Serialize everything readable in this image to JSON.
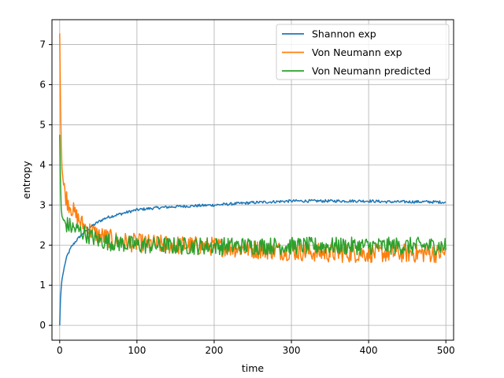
{
  "chart_data": {
    "type": "line",
    "title": "",
    "xlabel": "time",
    "ylabel": "entropy",
    "xlim": [
      -10,
      510
    ],
    "ylim": [
      -0.37,
      7.62
    ],
    "xticks": [
      0,
      100,
      200,
      300,
      400,
      500
    ],
    "yticks": [
      0,
      1,
      2,
      3,
      4,
      5,
      6,
      7
    ],
    "grid": true,
    "legend_position": "upper-right",
    "series": [
      {
        "name": "Shannon exp",
        "color": "#1f77b4",
        "x": [
          0,
          1,
          2,
          3,
          5,
          7,
          10,
          15,
          20,
          30,
          40,
          50,
          60,
          75,
          100,
          125,
          150,
          175,
          200,
          225,
          250,
          275,
          300,
          325,
          350,
          375,
          400,
          425,
          450,
          475,
          500
        ],
        "y": [
          0.0,
          0.65,
          0.95,
          1.15,
          1.35,
          1.55,
          1.75,
          1.95,
          2.08,
          2.3,
          2.45,
          2.58,
          2.68,
          2.76,
          2.88,
          2.93,
          2.96,
          2.98,
          3.0,
          3.03,
          3.06,
          3.08,
          3.1,
          3.1,
          3.1,
          3.1,
          3.1,
          3.08,
          3.08,
          3.08,
          3.07
        ]
      },
      {
        "name": "Von Neumann exp",
        "color": "#ff7f0e",
        "x": [
          0,
          1,
          2,
          3,
          5,
          7,
          10,
          15,
          20,
          30,
          40,
          50,
          75,
          100,
          150,
          200,
          250,
          300,
          350,
          400,
          450,
          500
        ],
        "y": [
          7.28,
          5.6,
          4.5,
          3.9,
          3.5,
          3.3,
          3.1,
          2.95,
          2.75,
          2.5,
          2.35,
          2.25,
          2.1,
          2.05,
          2.0,
          1.97,
          1.9,
          1.85,
          1.8,
          1.8,
          1.8,
          1.8
        ]
      },
      {
        "name": "Von Neumann predicted",
        "color": "#2ca02c",
        "x": [
          0,
          1,
          2,
          3,
          5,
          7,
          10,
          15,
          20,
          30,
          40,
          50,
          75,
          100,
          150,
          200,
          250,
          300,
          350,
          400,
          450,
          500
        ],
        "y": [
          4.75,
          3.6,
          2.9,
          2.72,
          2.62,
          2.55,
          2.5,
          2.45,
          2.4,
          2.32,
          2.22,
          2.12,
          2.05,
          2.0,
          1.98,
          1.98,
          1.98,
          1.98,
          1.98,
          1.98,
          1.98,
          1.98
        ]
      }
    ]
  }
}
